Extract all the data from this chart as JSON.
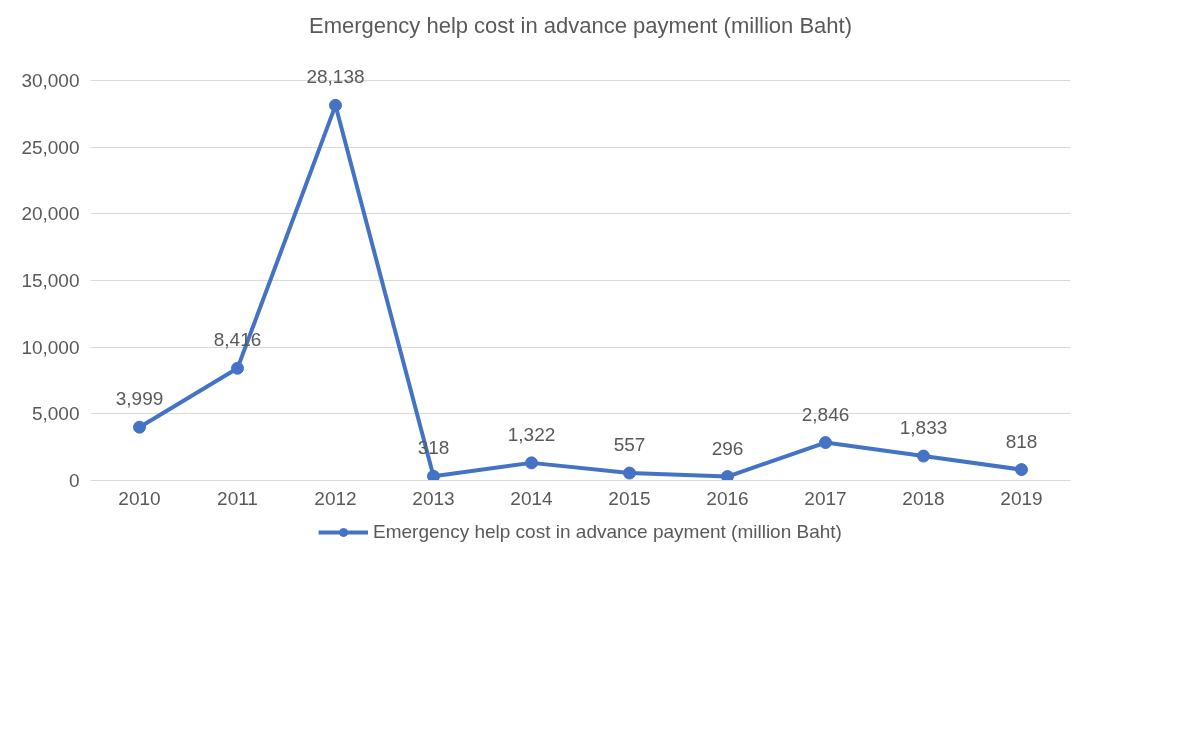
{
  "chart_data": {
    "type": "line",
    "title": "Emergency help cost in advance payment (million Baht)",
    "categories": [
      "2010",
      "2011",
      "2012",
      "2013",
      "2014",
      "2015",
      "2016",
      "2017",
      "2018",
      "2019"
    ],
    "series": [
      {
        "name": "Emergency help cost in advance payment (million Baht)",
        "color": "#4472c4",
        "values": [
          3999,
          8416,
          28138,
          318,
          1322,
          557,
          296,
          2846,
          1833,
          818
        ],
        "value_labels": [
          "3,999",
          "8,416",
          "28,138",
          "318",
          "1,322",
          "557",
          "296",
          "2,846",
          "1,833",
          "818"
        ]
      }
    ],
    "ylim": [
      0,
      30000
    ],
    "yticks": [
      {
        "value": 0,
        "label": "0"
      },
      {
        "value": 5000,
        "label": "5,000"
      },
      {
        "value": 10000,
        "label": "10,000"
      },
      {
        "value": 15000,
        "label": "15,000"
      },
      {
        "value": 20000,
        "label": "20,000"
      },
      {
        "value": 25000,
        "label": "25,000"
      },
      {
        "value": 30000,
        "label": "30,000"
      }
    ],
    "grid": "y",
    "legend": "bottom",
    "marker": "circle",
    "line_style": "solid"
  }
}
